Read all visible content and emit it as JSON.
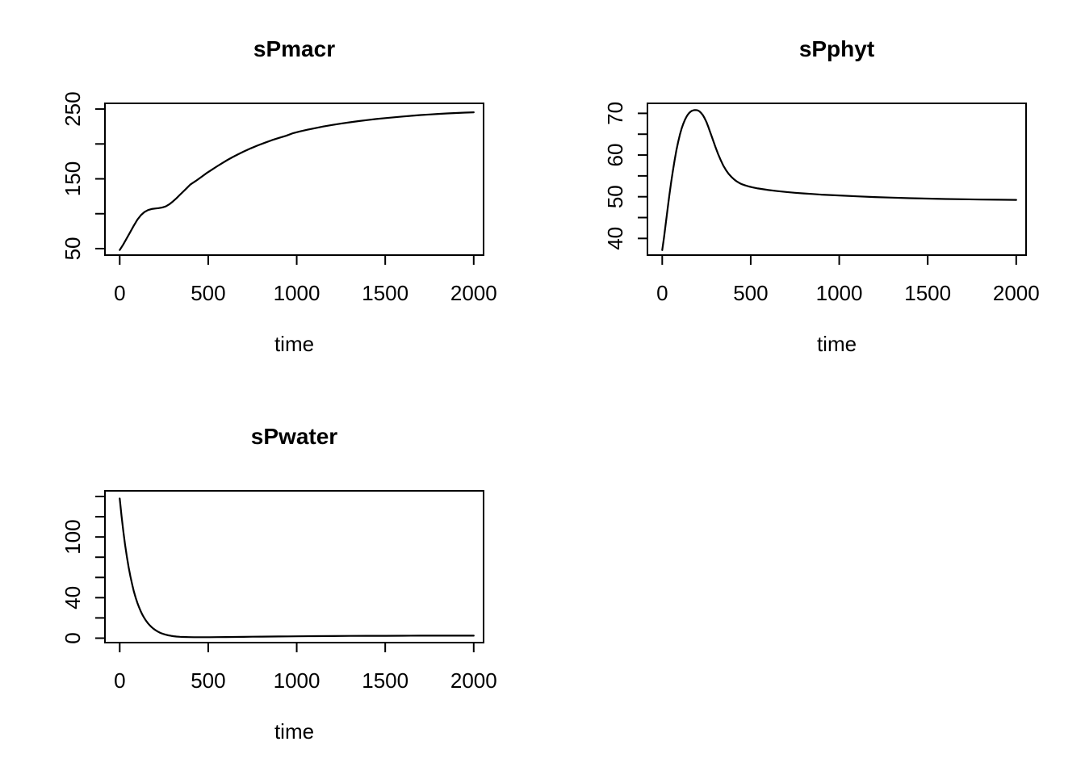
{
  "figure": {
    "background": "#ffffff",
    "text_color": "#000000",
    "line_color": "#000000"
  },
  "chart_data": [
    {
      "type": "line",
      "title": "sPmacr",
      "xlabel": "time",
      "ylabel": "",
      "grid": false,
      "legend": "none",
      "xlim": [
        -83.5,
        2055.7
      ],
      "ylim": [
        40.7,
        258.2
      ],
      "x_ticks": {
        "values": [
          0,
          500,
          1000,
          1500,
          2000
        ],
        "labels": [
          "0",
          "500",
          "1000",
          "1500",
          "2000"
        ]
      },
      "y_ticks": {
        "values": [
          50,
          100,
          150,
          200,
          250
        ],
        "labels": [
          "50",
          "",
          "150",
          "",
          "250"
        ]
      },
      "series": [
        {
          "name": "sPmacr",
          "points": [
            [
              0,
              48
            ],
            [
              20,
              56
            ],
            [
              40,
              65
            ],
            [
              60,
              74
            ],
            [
              80,
              83
            ],
            [
              100,
              91.5
            ],
            [
              120,
              98
            ],
            [
              140,
              102.5
            ],
            [
              160,
              105.3
            ],
            [
              180,
              106.8
            ],
            [
              200,
              107.5
            ],
            [
              220,
              108
            ],
            [
              240,
              108.8
            ],
            [
              260,
              110.5
            ],
            [
              280,
              113.5
            ],
            [
              300,
              117.5
            ],
            [
              320,
              122
            ],
            [
              340,
              127
            ],
            [
              360,
              132
            ],
            [
              380,
              137
            ],
            [
              400,
              142
            ],
            [
              430,
              147
            ],
            [
              460,
              152.5
            ],
            [
              490,
              158
            ],
            [
              520,
              163
            ],
            [
              550,
              168
            ],
            [
              580,
              172.7
            ],
            [
              610,
              177.2
            ],
            [
              640,
              181.4
            ],
            [
              670,
              185.3
            ],
            [
              700,
              189
            ],
            [
              740,
              193.6
            ],
            [
              780,
              197.9
            ],
            [
              820,
              201.8
            ],
            [
              860,
              205.4
            ],
            [
              900,
              208.7
            ],
            [
              940,
              211.7
            ],
            [
              980,
              215.5
            ],
            [
              1020,
              218
            ],
            [
              1060,
              220.4
            ],
            [
              1100,
              222.5
            ],
            [
              1150,
              225
            ],
            [
              1200,
              227.2
            ],
            [
              1250,
              229.2
            ],
            [
              1300,
              231
            ],
            [
              1350,
              232.7
            ],
            [
              1400,
              234.2
            ],
            [
              1450,
              235.7
            ],
            [
              1500,
              237
            ],
            [
              1550,
              238.2
            ],
            [
              1600,
              239.4
            ],
            [
              1650,
              240.4
            ],
            [
              1700,
              241.4
            ],
            [
              1750,
              242.2
            ],
            [
              1800,
              243
            ],
            [
              1850,
              243.7
            ],
            [
              1900,
              244.3
            ],
            [
              1950,
              244.9
            ],
            [
              2000,
              245.4
            ]
          ]
        }
      ]
    },
    {
      "type": "line",
      "title": "sPphyt",
      "xlabel": "time",
      "ylabel": "",
      "grid": false,
      "legend": "none",
      "xlim": [
        -83.5,
        2055.7
      ],
      "ylim": [
        36.0,
        72.4
      ],
      "x_ticks": {
        "values": [
          0,
          500,
          1000,
          1500,
          2000
        ],
        "labels": [
          "0",
          "500",
          "1000",
          "1500",
          "2000"
        ]
      },
      "y_ticks": {
        "values": [
          40,
          45,
          50,
          55,
          60,
          65,
          70
        ],
        "labels": [
          "40",
          "",
          "50",
          "",
          "60",
          "",
          "70"
        ]
      },
      "series": [
        {
          "name": "sPphyt",
          "points": [
            [
              0,
              37.2
            ],
            [
              10,
              40.2
            ],
            [
              20,
              43.6
            ],
            [
              30,
              47
            ],
            [
              40,
              50.3
            ],
            [
              50,
              53.4
            ],
            [
              60,
              56.2
            ],
            [
              70,
              58.8
            ],
            [
              80,
              61.1
            ],
            [
              90,
              63.1
            ],
            [
              100,
              64.9
            ],
            [
              110,
              66.4
            ],
            [
              120,
              67.6
            ],
            [
              130,
              68.6
            ],
            [
              140,
              69.4
            ],
            [
              150,
              70
            ],
            [
              160,
              70.4
            ],
            [
              170,
              70.65
            ],
            [
              180,
              70.78
            ],
            [
              190,
              70.8
            ],
            [
              200,
              70.72
            ],
            [
              210,
              70.5
            ],
            [
              220,
              70.1
            ],
            [
              230,
              69.55
            ],
            [
              240,
              68.8
            ],
            [
              250,
              67.9
            ],
            [
              260,
              66.8
            ],
            [
              270,
              65.6
            ],
            [
              280,
              64.4
            ],
            [
              290,
              63.2
            ],
            [
              300,
              62
            ],
            [
              315,
              60.3
            ],
            [
              330,
              58.8
            ],
            [
              345,
              57.5
            ],
            [
              360,
              56.4
            ],
            [
              375,
              55.5
            ],
            [
              390,
              54.8
            ],
            [
              405,
              54.2
            ],
            [
              420,
              53.7
            ],
            [
              435,
              53.3
            ],
            [
              450,
              53
            ],
            [
              470,
              52.7
            ],
            [
              490,
              52.45
            ],
            [
              510,
              52.25
            ],
            [
              540,
              52
            ],
            [
              570,
              51.8
            ],
            [
              600,
              51.6
            ],
            [
              650,
              51.35
            ],
            [
              700,
              51.15
            ],
            [
              750,
              50.95
            ],
            [
              800,
              50.8
            ],
            [
              850,
              50.65
            ],
            [
              900,
              50.5
            ],
            [
              950,
              50.4
            ],
            [
              1000,
              50.3
            ],
            [
              1100,
              50.1
            ],
            [
              1200,
              49.92
            ],
            [
              1300,
              49.78
            ],
            [
              1400,
              49.65
            ],
            [
              1500,
              49.55
            ],
            [
              1600,
              49.46
            ],
            [
              1700,
              49.39
            ],
            [
              1800,
              49.33
            ],
            [
              1900,
              49.28
            ],
            [
              2000,
              49.25
            ]
          ]
        }
      ]
    },
    {
      "type": "line",
      "title": "sPwater",
      "xlabel": "time",
      "ylabel": "",
      "grid": false,
      "legend": "none",
      "xlim": [
        -83.5,
        2055.7
      ],
      "ylim": [
        -4.4,
        145.6
      ],
      "x_ticks": {
        "values": [
          0,
          500,
          1000,
          1500,
          2000
        ],
        "labels": [
          "0",
          "500",
          "1000",
          "1500",
          "2000"
        ]
      },
      "y_ticks": {
        "values": [
          0,
          20,
          40,
          60,
          80,
          100,
          120,
          140
        ],
        "labels": [
          "0",
          "",
          "40",
          "",
          "",
          "100",
          "",
          ""
        ]
      },
      "series": [
        {
          "name": "sPwater",
          "points": [
            [
              0,
              138
            ],
            [
              10,
              121
            ],
            [
              20,
              106
            ],
            [
              30,
              92.5
            ],
            [
              40,
              80.7
            ],
            [
              50,
              70.3
            ],
            [
              60,
              61.2
            ],
            [
              70,
              53.2
            ],
            [
              80,
              46.2
            ],
            [
              90,
              40.1
            ],
            [
              100,
              34.8
            ],
            [
              110,
              30.2
            ],
            [
              120,
              26.1
            ],
            [
              130,
              22.6
            ],
            [
              140,
              19.5
            ],
            [
              150,
              16.9
            ],
            [
              160,
              14.6
            ],
            [
              170,
              12.6
            ],
            [
              180,
              10.9
            ],
            [
              190,
              9.4
            ],
            [
              200,
              8.1
            ],
            [
              215,
              6.5
            ],
            [
              230,
              5.2
            ],
            [
              245,
              4.2
            ],
            [
              260,
              3.4
            ],
            [
              275,
              2.8
            ],
            [
              290,
              2.3
            ],
            [
              305,
              1.9
            ],
            [
              320,
              1.6
            ],
            [
              340,
              1.35
            ],
            [
              360,
              1.2
            ],
            [
              390,
              1.05
            ],
            [
              420,
              0.95
            ],
            [
              450,
              0.92
            ],
            [
              480,
              0.92
            ],
            [
              510,
              0.95
            ],
            [
              550,
              1.0
            ],
            [
              600,
              1.1
            ],
            [
              650,
              1.2
            ],
            [
              700,
              1.3
            ],
            [
              750,
              1.4
            ],
            [
              800,
              1.5
            ],
            [
              850,
              1.6
            ],
            [
              900,
              1.7
            ],
            [
              950,
              1.78
            ],
            [
              1000,
              1.85
            ],
            [
              1100,
              2.0
            ],
            [
              1200,
              2.1
            ],
            [
              1300,
              2.2
            ],
            [
              1400,
              2.28
            ],
            [
              1500,
              2.34
            ],
            [
              1600,
              2.4
            ],
            [
              1700,
              2.44
            ],
            [
              1800,
              2.47
            ],
            [
              1900,
              2.49
            ],
            [
              2000,
              2.5
            ]
          ]
        }
      ]
    }
  ]
}
